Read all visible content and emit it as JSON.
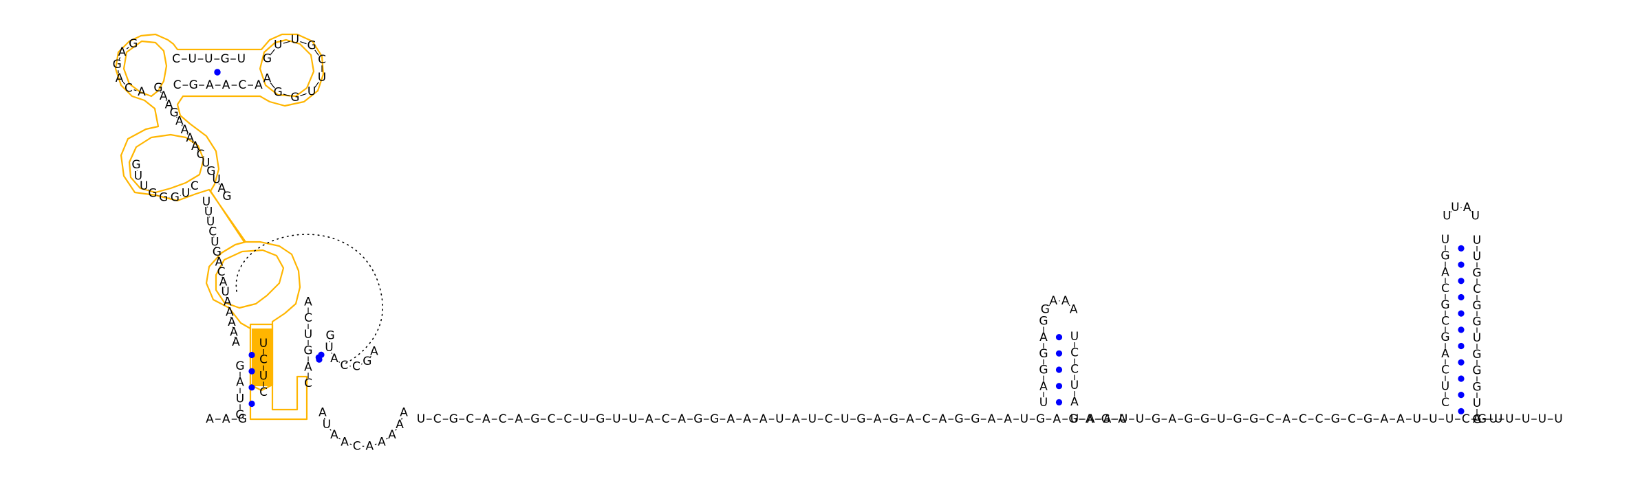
{
  "colors": {
    "highlight_outline": "#ffb500",
    "highlight_fill": "#ffb500",
    "base_pair_dot": "#0000ff",
    "nucleotide_text": "#000000",
    "background": "#ffffff"
  },
  "layout": "RNA secondary structure drawing (single strand with stem-loops and one pseudoknot)",
  "sequence": "AAGAUGGAUAGCCUUGCAAAUAACAAAUCGCACAGCCUGUUACAGGAAAUAUCUGAGACAGGAAUGAGAGAUAAUUGAGGUGGCACCGCGAAUUUCGUAAUUUU",
  "structures": [
    {
      "name": "5' multi-loop hairpin domain",
      "highlighted": true,
      "segments": [
        {
          "role": "basal stem 5' strand",
          "bases": "GUAG"
        },
        {
          "role": "interior strand",
          "bases": "AAAAAUACAGUCUUU"
        },
        {
          "role": "helix",
          "bases": "UCUC"
        },
        {
          "role": "loop 5'",
          "bases": "ACAGAG"
        },
        {
          "role": "stem",
          "bases": "CUUGU"
        },
        {
          "role": "apical loop",
          "bases": "GUUGCUUGGA"
        },
        {
          "role": "stem",
          "bases": "ACAAGC"
        },
        {
          "role": "interior strand",
          "bases": "GAAGAAAACUGUAG"
        },
        {
          "role": "loop",
          "bases": "GUUGGGUC"
        }
      ]
    },
    {
      "name": "pseudoknot region",
      "highlighted": false,
      "segments": [
        {
          "role": "stem 5' strand",
          "bases": "CAGUCA"
        },
        {
          "role": "knot loop",
          "bases": "GUACCGA"
        },
        {
          "role": "loop",
          "bases": "AAAAACAAUA"
        }
      ]
    },
    {
      "name": "hairpin 2",
      "highlighted": false,
      "stem_5prime": "UAGGAG",
      "loop": "GAAA",
      "stem_3prime": "UCCUA"
    },
    {
      "name": "hairpin 3",
      "highlighted": false,
      "stem_5prime": "CUCAGCGCAGU",
      "loop": "UUAU",
      "stem_3prime": "UUGCGGUGGGUG"
    }
  ],
  "linker_1": "UCGCACAGCCUGUUACAGGAAAUAUCUGAGACAGGAAUGAGAGA",
  "linker_2": "UAAUUGAGGUGGCACCGCGAAUUUCGU",
  "tail_3prime": "AUUUUU"
}
